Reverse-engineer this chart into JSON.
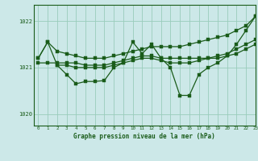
{
  "title": "Graphe pression niveau de la mer (hPa)",
  "bg_color": "#cce8e8",
  "grid_color": "#99ccbb",
  "line_color": "#1a5c1a",
  "xlim": [
    -0.5,
    23
  ],
  "ylim": [
    1019.75,
    1022.35
  ],
  "yticks": [
    1020,
    1021,
    1022
  ],
  "xticks": [
    0,
    1,
    2,
    3,
    4,
    5,
    6,
    7,
    8,
    9,
    10,
    11,
    12,
    13,
    14,
    15,
    16,
    17,
    18,
    19,
    20,
    21,
    22,
    23
  ],
  "lines": [
    {
      "x": [
        0,
        1,
        2,
        3,
        4,
        5,
        6,
        7,
        8,
        9,
        10,
        11,
        12,
        13,
        14,
        15,
        16,
        17,
        18,
        19,
        20,
        21,
        22,
        23
      ],
      "y": [
        1021.2,
        1021.55,
        1021.35,
        1021.3,
        1021.25,
        1021.2,
        1021.2,
        1021.2,
        1021.25,
        1021.3,
        1021.35,
        1021.4,
        1021.45,
        1021.45,
        1021.45,
        1021.45,
        1021.5,
        1021.55,
        1021.6,
        1021.65,
        1021.7,
        1021.8,
        1021.9,
        1022.1
      ]
    },
    {
      "x": [
        0,
        1,
        2,
        3,
        4,
        5,
        6,
        7,
        8,
        9,
        10,
        11,
        12,
        13,
        14,
        15,
        16,
        17,
        18,
        19,
        20,
        21,
        22,
        23
      ],
      "y": [
        1021.1,
        1021.1,
        1021.1,
        1021.1,
        1021.1,
        1021.05,
        1021.05,
        1021.05,
        1021.1,
        1021.15,
        1021.2,
        1021.25,
        1021.25,
        1021.2,
        1021.2,
        1021.2,
        1021.2,
        1021.2,
        1021.2,
        1021.2,
        1021.25,
        1021.3,
        1021.4,
        1021.5
      ]
    },
    {
      "x": [
        2,
        3,
        4,
        5,
        6,
        7,
        8,
        9,
        10,
        11,
        12,
        13,
        14,
        15,
        16,
        17,
        18,
        19,
        20,
        21,
        22,
        23
      ],
      "y": [
        1021.05,
        1021.05,
        1021.0,
        1021.0,
        1021.0,
        1021.0,
        1021.05,
        1021.1,
        1021.15,
        1021.2,
        1021.2,
        1021.15,
        1021.1,
        1021.1,
        1021.1,
        1021.15,
        1021.2,
        1021.25,
        1021.3,
        1021.4,
        1021.5,
        1021.6
      ]
    },
    {
      "x": [
        0,
        1,
        2,
        3,
        4,
        5,
        6,
        7,
        8,
        9,
        10,
        11,
        12,
        13,
        14,
        15,
        16,
        17,
        18,
        19,
        20,
        21,
        22,
        23
      ],
      "y": [
        1021.2,
        1021.55,
        1021.05,
        1020.85,
        1020.65,
        1020.7,
        1020.7,
        1020.72,
        1021.0,
        1021.1,
        1021.55,
        1021.3,
        1021.5,
        1021.2,
        1021.0,
        1020.4,
        1020.4,
        1020.85,
        1021.0,
        1021.1,
        1021.25,
        1021.5,
        1021.8,
        1022.1
      ]
    }
  ]
}
